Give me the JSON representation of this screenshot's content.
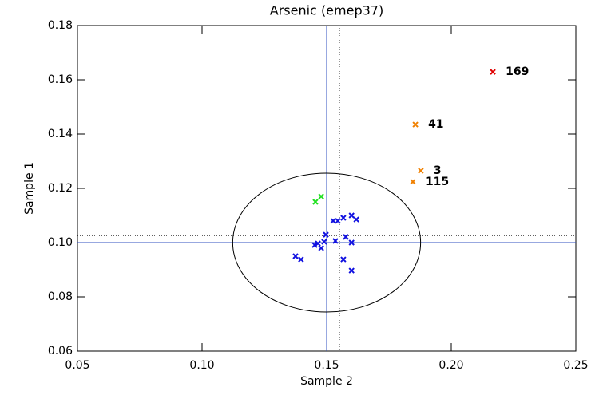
{
  "chart_data": {
    "type": "scatter",
    "title": "Arsenic (emep37)",
    "x_label": "Sample 2",
    "y_label": "Sample 1",
    "xlim": [
      0.05,
      0.25
    ],
    "ylim": [
      0.06,
      0.18
    ],
    "xticks": [
      {
        "value": 0.05,
        "label": "0.05"
      },
      {
        "value": 0.1,
        "label": "0.10"
      },
      {
        "value": 0.15,
        "label": "0.15"
      },
      {
        "value": 0.2,
        "label": "0.20"
      },
      {
        "value": 0.25,
        "label": "0.25"
      }
    ],
    "yticks": [
      {
        "value": 0.06,
        "label": "0.06"
      },
      {
        "value": 0.08,
        "label": "0.08"
      },
      {
        "value": 0.1,
        "label": "0.10"
      },
      {
        "value": 0.12,
        "label": "0.12"
      },
      {
        "value": 0.14,
        "label": "0.14"
      },
      {
        "value": 0.16,
        "label": "0.16"
      },
      {
        "value": 0.18,
        "label": "0.18"
      }
    ],
    "reference_lines": {
      "x_solid": 0.15,
      "y_solid": 0.1,
      "x_dotted": 0.1551,
      "y_dotted": 0.1026,
      "color": "#3050c0"
    },
    "ellipse": {
      "cx": 0.15,
      "cy": 0.1,
      "rx": 0.0377,
      "ry": 0.0256
    },
    "series": [
      {
        "color": "#e00000",
        "x": [
          0.2167
        ],
        "values": [
          0.1629
        ],
        "labels": [
          "169"
        ]
      },
      {
        "color": "#f08000",
        "x": [
          0.1856,
          0.1878,
          0.1846
        ],
        "values": [
          0.1435,
          0.1265,
          0.1224
        ],
        "labels": [
          "41",
          "3",
          "115"
        ]
      },
      {
        "color": "#20e020",
        "x": [
          0.1455,
          0.1478
        ],
        "values": [
          0.115,
          0.117
        ]
      },
      {
        "color": "#1010e0",
        "x": [
          0.1375,
          0.1397,
          0.1452,
          0.1465,
          0.1478,
          0.149,
          0.1497,
          0.1526,
          0.1545,
          0.1567,
          0.16,
          0.1619,
          0.1577,
          0.16,
          0.1535,
          0.1567,
          0.16
        ],
        "values": [
          0.095,
          0.0938,
          0.0991,
          0.0997,
          0.098,
          0.1003,
          0.1029,
          0.108,
          0.108,
          0.1091,
          0.11,
          0.1085,
          0.1021,
          0.1,
          0.1006,
          0.0938,
          0.0897
        ]
      }
    ]
  }
}
